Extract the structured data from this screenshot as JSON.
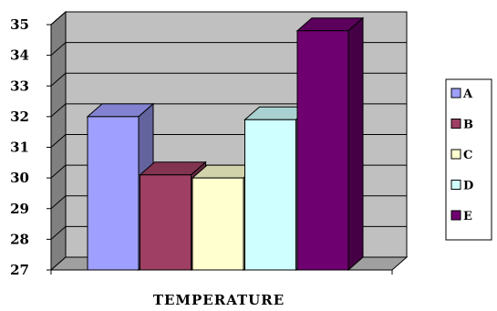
{
  "chart_data": {
    "type": "bar",
    "categories": [
      "A",
      "B",
      "C",
      "D",
      "E"
    ],
    "values": [
      32.0,
      30.1,
      30.0,
      31.9,
      34.8
    ],
    "colors": [
      "#9f9fff",
      "#9f3f63",
      "#ffffcf",
      "#cfffff",
      "#6f006f"
    ],
    "title": "",
    "xlabel": "TEMPERATURE",
    "ylabel": "",
    "ylim": [
      27,
      35
    ],
    "yticks": [
      "27",
      "28",
      "29",
      "30",
      "31",
      "32",
      "33",
      "34",
      "35"
    ],
    "grid": true,
    "three_d": true,
    "legend_position": "right"
  }
}
